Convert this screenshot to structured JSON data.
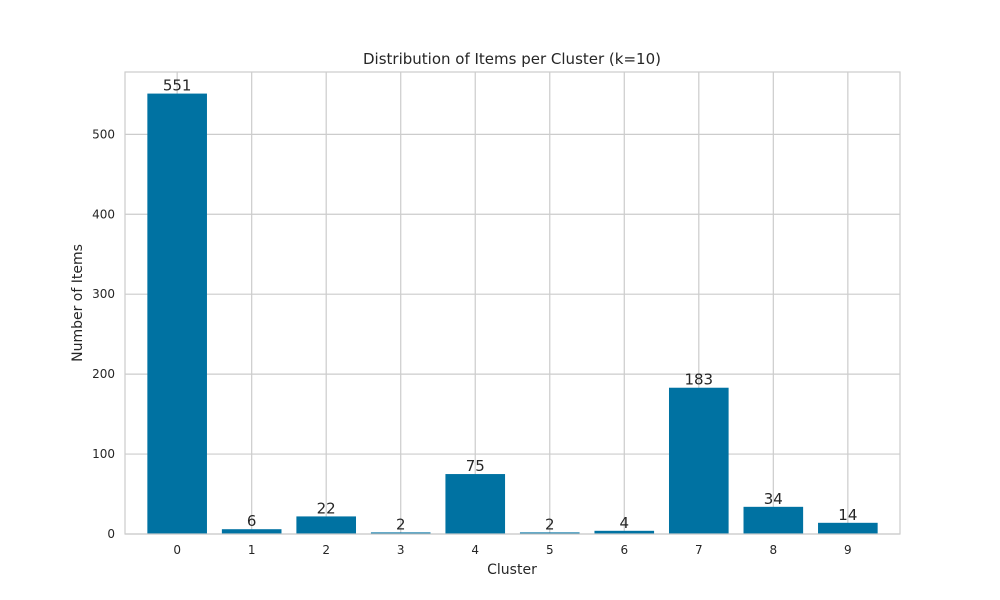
{
  "chart_data": {
    "type": "bar",
    "title": "Distribution of Items per Cluster (k=10)",
    "xlabel": "Cluster",
    "ylabel": "Number of Items",
    "categories": [
      "0",
      "1",
      "2",
      "3",
      "4",
      "5",
      "6",
      "7",
      "8",
      "9"
    ],
    "values": [
      551,
      6,
      22,
      2,
      75,
      2,
      4,
      183,
      34,
      14
    ],
    "data_labels": [
      "551",
      "6",
      "22",
      "2",
      "75",
      "2",
      "4",
      "183",
      "34",
      "14"
    ],
    "ylim": [
      0,
      578
    ],
    "yticks": [
      0,
      100,
      200,
      300,
      400,
      500
    ],
    "grid": true,
    "legend": "none",
    "bar_color": "#0072a2",
    "grid_color": "#cccccc",
    "spine_color": "#cccccc"
  }
}
